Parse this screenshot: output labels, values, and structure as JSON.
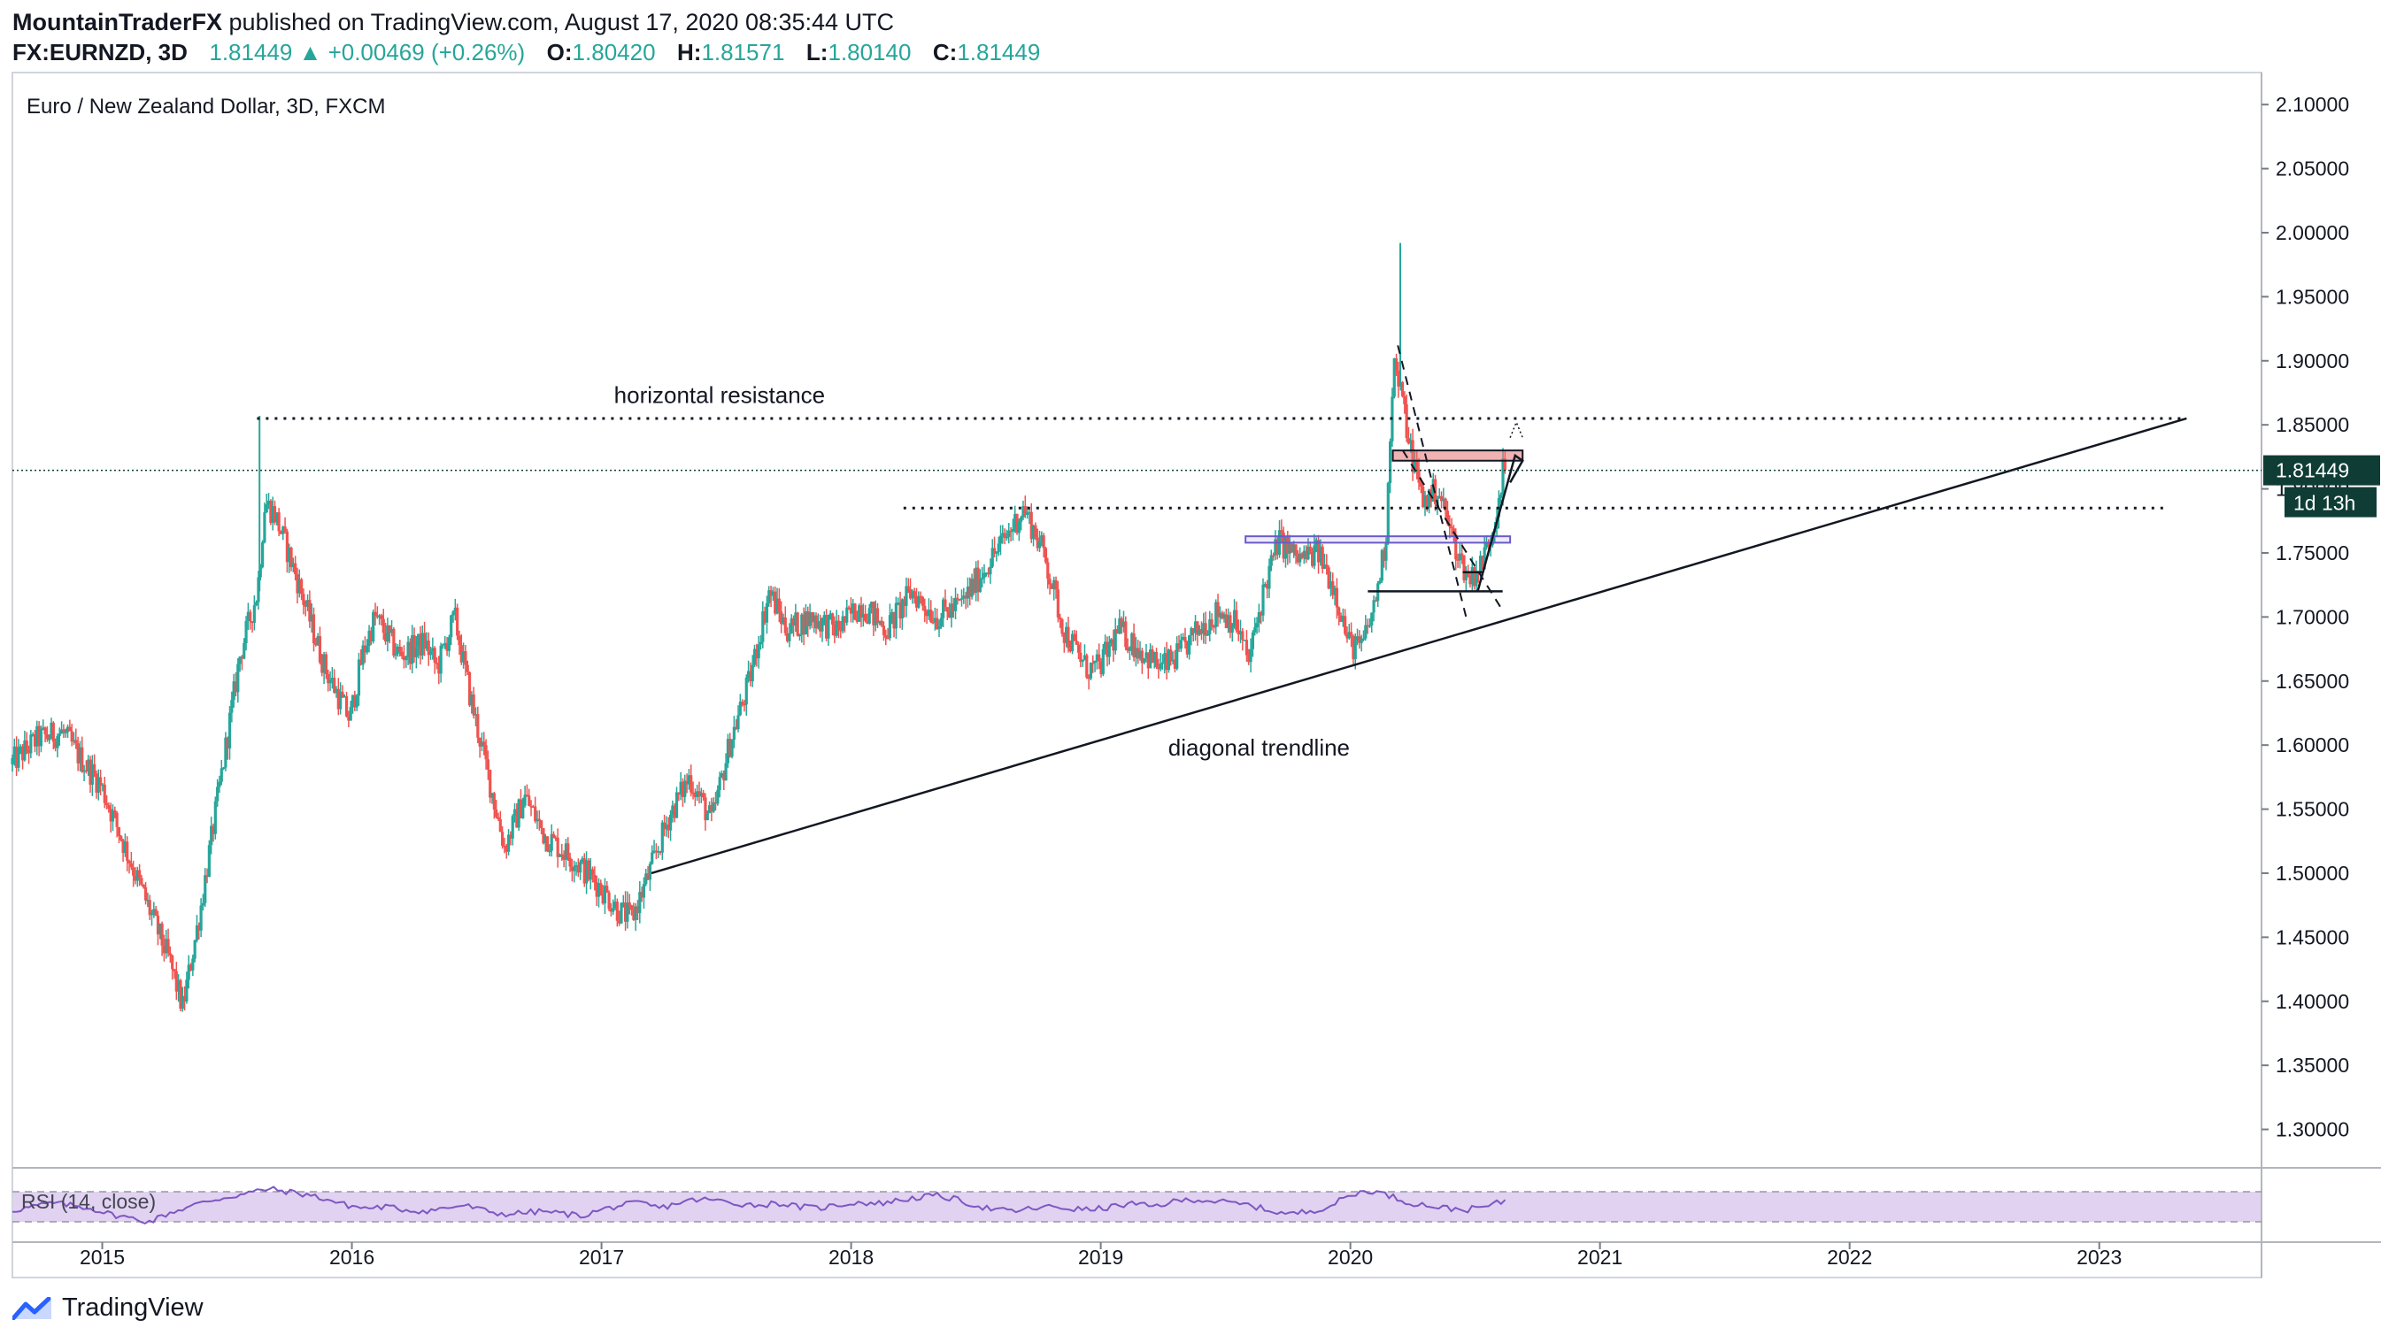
{
  "header": {
    "author": "MountainTraderFX",
    "published": "published on TradingView.com, August 17, 2020 08:35:44 UTC",
    "symbol": "FX:EURNZD, 3D",
    "last": "1.81449",
    "change": "+0.00469 (+0.26%)",
    "open_label": "O:",
    "open": "1.80420",
    "high_label": "H:",
    "high": "1.81571",
    "low_label": "L:",
    "low": "1.80140",
    "close_label": "C:",
    "close": "1.81449"
  },
  "brand": {
    "name": "TradingView",
    "icon": "tradingview-logo-icon"
  },
  "colors": {
    "up": "#26a69a",
    "down": "#ef5350",
    "rsi_line": "#7e57c2",
    "rsi_band": "#e1d2f1",
    "purple_zone": "#6a5acd",
    "red_zone": "#e57373",
    "price_label_bg": "#0f3d36"
  },
  "chart_data": {
    "type": "candlestick",
    "title": "Euro / New Zealand Dollar, 3D, FXCM",
    "y_ticks": [
      "2.10000",
      "2.05000",
      "2.00000",
      "1.95000",
      "1.90000",
      "1.85000",
      "1.80000",
      "1.75000",
      "1.70000",
      "1.65000",
      "1.60000",
      "1.55000",
      "1.50000",
      "1.45000",
      "1.40000",
      "1.35000",
      "1.30000"
    ],
    "ylim": [
      1.27,
      2.125
    ],
    "x_ticks": [
      "2015",
      "2016",
      "2017",
      "2018",
      "2019",
      "2020",
      "2021",
      "2022",
      "2023"
    ],
    "xlim": [
      2014.64,
      2023.65
    ],
    "current_price": 1.81449,
    "current_price_label": "1.81449",
    "countdown_label": "1d 13h",
    "price_path": [
      [
        2014.64,
        1.585
      ],
      [
        2014.75,
        1.605
      ],
      [
        2014.85,
        1.61
      ],
      [
        2014.92,
        1.59
      ],
      [
        2015.0,
        1.57
      ],
      [
        2015.1,
        1.52
      ],
      [
        2015.2,
        1.47
      ],
      [
        2015.28,
        1.43
      ],
      [
        2015.33,
        1.395
      ],
      [
        2015.4,
        1.47
      ],
      [
        2015.48,
        1.57
      ],
      [
        2015.56,
        1.67
      ],
      [
        2015.63,
        1.72
      ],
      [
        2015.66,
        1.79
      ],
      [
        2015.7,
        1.78
      ],
      [
        2015.78,
        1.735
      ],
      [
        2015.9,
        1.66
      ],
      [
        2016.0,
        1.62
      ],
      [
        2016.05,
        1.67
      ],
      [
        2016.1,
        1.7
      ],
      [
        2016.2,
        1.67
      ],
      [
        2016.3,
        1.68
      ],
      [
        2016.35,
        1.66
      ],
      [
        2016.42,
        1.7
      ],
      [
        2016.48,
        1.64
      ],
      [
        2016.55,
        1.58
      ],
      [
        2016.62,
        1.52
      ],
      [
        2016.7,
        1.56
      ],
      [
        2016.78,
        1.53
      ],
      [
        2016.9,
        1.51
      ],
      [
        2017.0,
        1.49
      ],
      [
        2017.08,
        1.47
      ],
      [
        2017.13,
        1.465
      ],
      [
        2017.2,
        1.5
      ],
      [
        2017.28,
        1.545
      ],
      [
        2017.36,
        1.575
      ],
      [
        2017.45,
        1.54
      ],
      [
        2017.52,
        1.6
      ],
      [
        2017.6,
        1.65
      ],
      [
        2017.68,
        1.72
      ],
      [
        2017.75,
        1.69
      ],
      [
        2017.85,
        1.7
      ],
      [
        2017.95,
        1.69
      ],
      [
        2018.05,
        1.71
      ],
      [
        2018.15,
        1.69
      ],
      [
        2018.25,
        1.72
      ],
      [
        2018.35,
        1.7
      ],
      [
        2018.45,
        1.71
      ],
      [
        2018.55,
        1.74
      ],
      [
        2018.62,
        1.76
      ],
      [
        2018.7,
        1.785
      ],
      [
        2018.78,
        1.75
      ],
      [
        2018.86,
        1.69
      ],
      [
        2018.95,
        1.66
      ],
      [
        2019.0,
        1.66
      ],
      [
        2019.08,
        1.69
      ],
      [
        2019.16,
        1.675
      ],
      [
        2019.25,
        1.66
      ],
      [
        2019.32,
        1.67
      ],
      [
        2019.4,
        1.69
      ],
      [
        2019.48,
        1.705
      ],
      [
        2019.55,
        1.695
      ],
      [
        2019.6,
        1.665
      ],
      [
        2019.66,
        1.72
      ],
      [
        2019.72,
        1.76
      ],
      [
        2019.8,
        1.745
      ],
      [
        2019.88,
        1.75
      ],
      [
        2019.95,
        1.72
      ],
      [
        2020.0,
        1.68
      ],
      [
        2020.05,
        1.675
      ],
      [
        2020.1,
        1.705
      ],
      [
        2020.15,
        1.76
      ],
      [
        2020.18,
        1.9
      ],
      [
        2020.21,
        1.875
      ],
      [
        2020.25,
        1.83
      ],
      [
        2020.3,
        1.79
      ],
      [
        2020.36,
        1.8
      ],
      [
        2020.42,
        1.76
      ],
      [
        2020.48,
        1.73
      ],
      [
        2020.53,
        1.74
      ],
      [
        2020.58,
        1.77
      ],
      [
        2020.62,
        1.81449
      ]
    ],
    "spikes": [
      {
        "x": 2015.63,
        "high": 1.857
      },
      {
        "x": 2020.2,
        "high": 1.992
      }
    ],
    "annotations": [
      {
        "text": "horizontal resistance",
        "kind": "dotted-horizontal",
        "x1": 2015.62,
        "x2": 2023.35,
        "y": 1.855,
        "label_x": 2017.05,
        "label_y": 1.867
      },
      {
        "text": "",
        "kind": "dotted-horizontal",
        "x1": 2018.21,
        "x2": 2023.26,
        "y": 1.785
      },
      {
        "text": "diagonal trendline",
        "kind": "trendline",
        "x1": 2017.2,
        "y1": 1.5,
        "x2": 2023.35,
        "y2": 1.855,
        "label_x": 2019.27,
        "label_y": 1.592
      },
      {
        "text": "",
        "kind": "purple-zone",
        "x1": 2019.58,
        "x2": 2020.64,
        "y1": 1.758,
        "y2": 1.763
      },
      {
        "text": "",
        "kind": "red-zone",
        "x1": 2020.17,
        "x2": 2020.69,
        "y1": 1.822,
        "y2": 1.83
      }
    ],
    "rsi": {
      "label": "RSI (14, close)",
      "upper": 70,
      "lower": 30,
      "values": [
        45,
        50,
        55,
        52,
        48,
        40,
        35,
        30,
        42,
        50,
        58,
        63,
        68,
        74,
        70,
        66,
        60,
        52,
        48,
        50,
        46,
        44,
        48,
        52,
        45,
        40,
        42,
        44,
        41,
        38,
        46,
        52,
        55,
        48,
        56,
        60,
        58,
        54,
        52,
        55,
        50,
        48,
        52,
        56,
        54,
        58,
        62,
        65,
        60,
        52,
        46,
        44,
        48,
        50,
        47,
        46,
        50,
        54,
        50,
        56,
        60,
        58,
        55,
        52,
        45,
        40,
        44,
        50,
        64,
        72,
        66,
        56,
        52,
        48,
        46,
        50,
        58
      ]
    }
  }
}
